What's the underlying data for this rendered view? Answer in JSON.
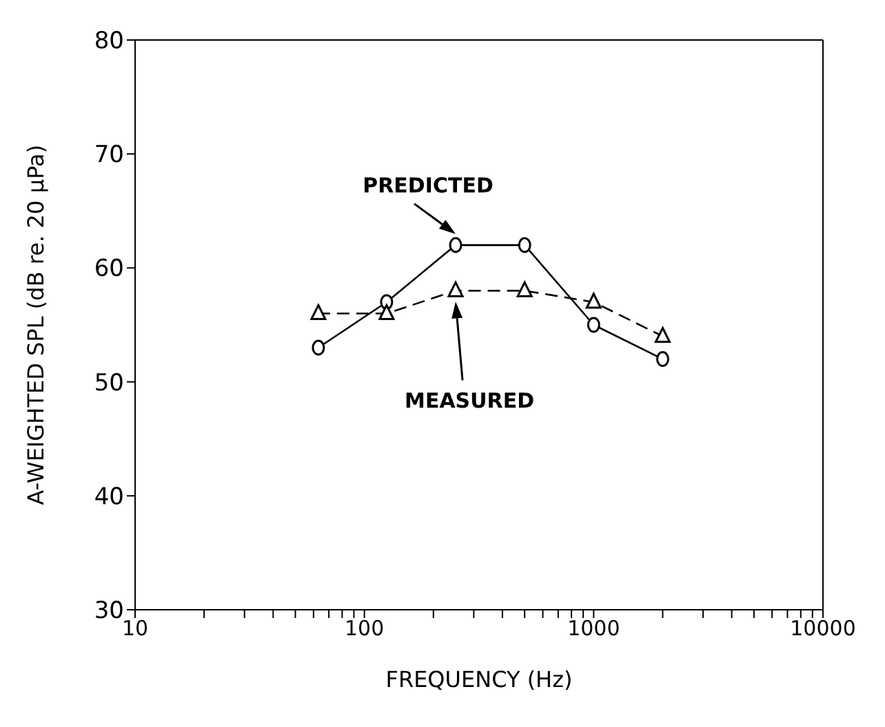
{
  "chart_data": {
    "type": "line",
    "xlabel": "FREQUENCY (Hz)",
    "ylabel": "A-WEIGHTED SPL (dB re. 20 μPa)",
    "x": [
      63,
      125,
      250,
      500,
      1000,
      2000
    ],
    "series": [
      {
        "name": "PREDICTED",
        "color": "#000000",
        "values": [
          53,
          57,
          62,
          62,
          55,
          52
        ],
        "marker": "circle",
        "line_style": "solid"
      },
      {
        "name": "MEASURED",
        "color": "#000000",
        "values": [
          56,
          56,
          58,
          58,
          57,
          54
        ],
        "marker": "triangle",
        "line_style": "dashed"
      }
    ],
    "log": "x",
    "xlim": [
      10,
      10000
    ],
    "xticks": [
      10,
      {
        "value": 20,
        "label": null
      },
      {
        "value": 30,
        "label": null
      },
      {
        "value": 40,
        "label": null
      },
      {
        "value": 50,
        "label": null
      },
      {
        "value": 60,
        "label": null
      },
      {
        "value": 70,
        "label": null
      },
      {
        "value": 80,
        "label": null
      },
      {
        "value": 90,
        "label": null
      },
      100,
      {
        "value": 200,
        "label": null
      },
      {
        "value": 300,
        "label": null
      },
      {
        "value": 400,
        "label": null
      },
      {
        "value": 500,
        "label": null
      },
      {
        "value": 600,
        "label": null
      },
      {
        "value": 700,
        "label": null
      },
      {
        "value": 800,
        "label": null
      },
      {
        "value": 900,
        "label": null
      },
      1000,
      {
        "value": 2000,
        "label": null
      },
      {
        "value": 3000,
        "label": null
      },
      {
        "value": 4000,
        "label": null
      },
      {
        "value": 5000,
        "label": null
      },
      {
        "value": 6000,
        "label": null
      },
      {
        "value": 7000,
        "label": null
      },
      {
        "value": 8000,
        "label": null
      },
      {
        "value": 9000,
        "label": null
      },
      10000
    ],
    "ylim": [
      30,
      80
    ],
    "yticks": [
      30,
      40,
      50,
      60,
      70,
      80
    ],
    "grid": false,
    "legend": false
  }
}
